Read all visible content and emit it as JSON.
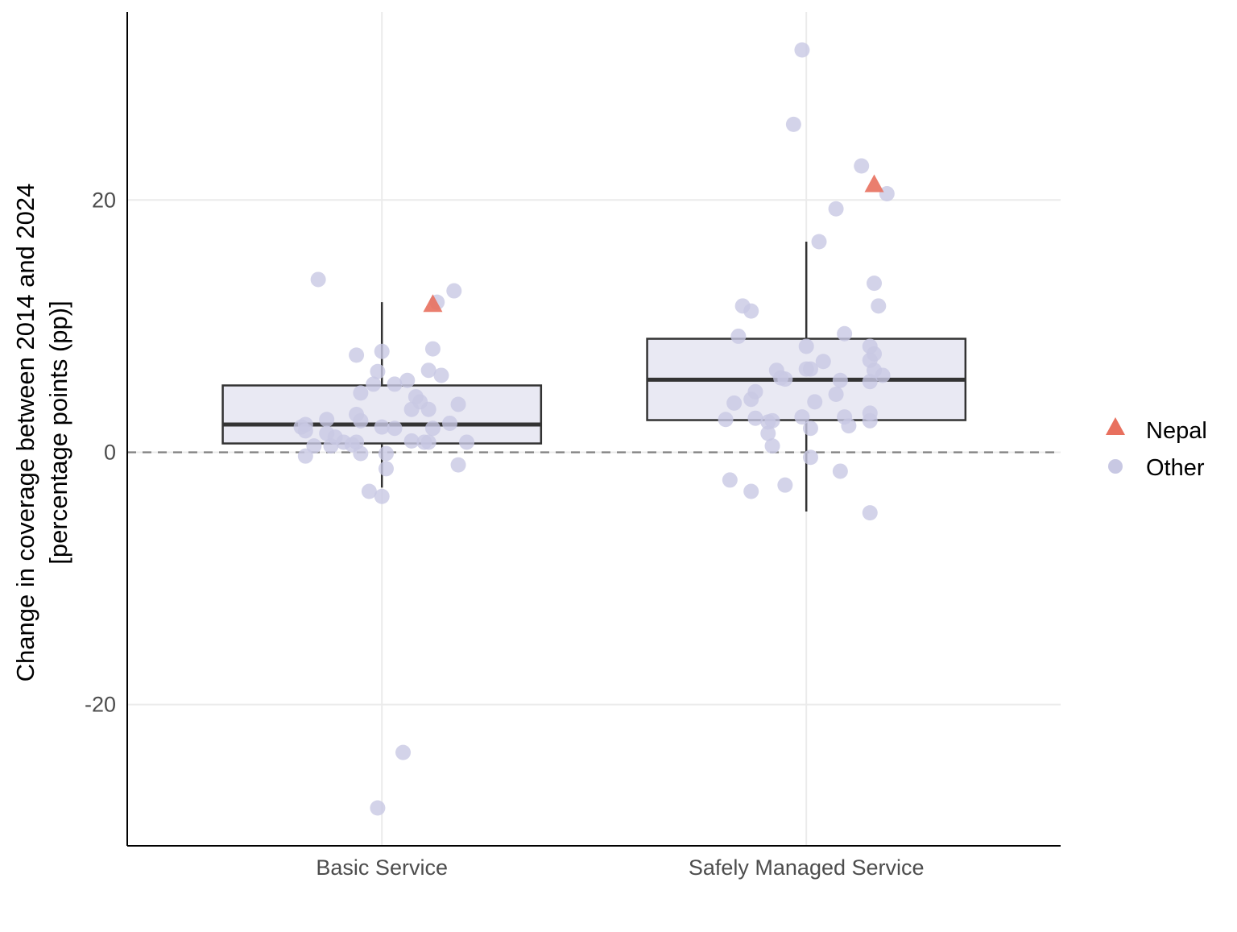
{
  "chart_data": {
    "type": "box+jitter",
    "title": "",
    "xlabel": "",
    "ylabel_lines": [
      "Change in coverage between 2014 and 2024",
      "[percentage points (pp)]"
    ],
    "categories": [
      "Basic Service",
      "Safely Managed Service"
    ],
    "ylim": [
      -31.2,
      34.9
    ],
    "yticks": [
      -20,
      0,
      20
    ],
    "ytick_labels": [
      "-20",
      "0",
      "20"
    ],
    "grid": true,
    "reference_line": {
      "y": 0,
      "style": "dashed",
      "color": "#808080"
    },
    "colors": {
      "box_fill": "#e9e9f3",
      "box_stroke": "#333333",
      "other": "#c8c8e3",
      "nepal": "#e8705e",
      "grid": "#ebebeb"
    },
    "boxes": [
      {
        "category": "Basic Service",
        "whisker_low": -2.8,
        "q1": 0.7,
        "median": 2.2,
        "q3": 5.3,
        "whisker_high": 11.9
      },
      {
        "category": "Safely Managed Service",
        "whisker_low": -4.7,
        "q1": 2.55,
        "median": 5.75,
        "q3": 9.0,
        "whisker_high": 16.7
      }
    ],
    "legend": {
      "position": "right",
      "entries": [
        {
          "label": "Nepal",
          "shape": "triangle"
        },
        {
          "label": "Other",
          "shape": "circle"
        }
      ]
    },
    "series": [
      {
        "name": "Other",
        "points": [
          {
            "cat": 0,
            "jitter": -0.15,
            "y": 13.7
          },
          {
            "cat": 0,
            "jitter": 0.17,
            "y": 12.8
          },
          {
            "cat": 0,
            "jitter": 0.13,
            "y": 11.9
          },
          {
            "cat": 0,
            "jitter": -0.06,
            "y": 7.7
          },
          {
            "cat": 0,
            "jitter": 0.0,
            "y": 8.0
          },
          {
            "cat": 0,
            "jitter": 0.12,
            "y": 8.2
          },
          {
            "cat": 0,
            "jitter": -0.01,
            "y": 6.4
          },
          {
            "cat": 0,
            "jitter": 0.11,
            "y": 6.5
          },
          {
            "cat": 0,
            "jitter": 0.14,
            "y": 6.1
          },
          {
            "cat": 0,
            "jitter": -0.02,
            "y": 5.4
          },
          {
            "cat": 0,
            "jitter": 0.03,
            "y": 5.4
          },
          {
            "cat": 0,
            "jitter": 0.06,
            "y": 5.7
          },
          {
            "cat": 0,
            "jitter": -0.05,
            "y": 4.7
          },
          {
            "cat": 0,
            "jitter": 0.08,
            "y": 4.4
          },
          {
            "cat": 0,
            "jitter": 0.09,
            "y": 4.0
          },
          {
            "cat": 0,
            "jitter": 0.07,
            "y": 3.4
          },
          {
            "cat": 0,
            "jitter": 0.11,
            "y": 3.4
          },
          {
            "cat": 0,
            "jitter": 0.18,
            "y": 3.8
          },
          {
            "cat": 0,
            "jitter": -0.06,
            "y": 3.0
          },
          {
            "cat": 0,
            "jitter": -0.05,
            "y": 2.5
          },
          {
            "cat": 0,
            "jitter": -0.13,
            "y": 2.6
          },
          {
            "cat": 0,
            "jitter": -0.18,
            "y": 2.2
          },
          {
            "cat": 0,
            "jitter": -0.19,
            "y": 2.0
          },
          {
            "cat": 0,
            "jitter": -0.18,
            "y": 1.7
          },
          {
            "cat": 0,
            "jitter": 0.0,
            "y": 2.0
          },
          {
            "cat": 0,
            "jitter": 0.03,
            "y": 1.9
          },
          {
            "cat": 0,
            "jitter": 0.16,
            "y": 2.3
          },
          {
            "cat": 0,
            "jitter": 0.12,
            "y": 1.9
          },
          {
            "cat": 0,
            "jitter": -0.13,
            "y": 1.5
          },
          {
            "cat": 0,
            "jitter": -0.11,
            "y": 1.2
          },
          {
            "cat": 0,
            "jitter": -0.09,
            "y": 0.8
          },
          {
            "cat": 0,
            "jitter": -0.06,
            "y": 0.8
          },
          {
            "cat": 0,
            "jitter": -0.07,
            "y": 0.6
          },
          {
            "cat": 0,
            "jitter": -0.16,
            "y": 0.5
          },
          {
            "cat": 0,
            "jitter": -0.12,
            "y": 0.5
          },
          {
            "cat": 0,
            "jitter": 0.07,
            "y": 0.9
          },
          {
            "cat": 0,
            "jitter": 0.1,
            "y": 0.8
          },
          {
            "cat": 0,
            "jitter": 0.11,
            "y": 0.8
          },
          {
            "cat": 0,
            "jitter": 0.2,
            "y": 0.8
          },
          {
            "cat": 0,
            "jitter": -0.18,
            "y": -0.3
          },
          {
            "cat": 0,
            "jitter": -0.05,
            "y": -0.1
          },
          {
            "cat": 0,
            "jitter": 0.01,
            "y": -0.1
          },
          {
            "cat": 0,
            "jitter": 0.01,
            "y": -1.3
          },
          {
            "cat": 0,
            "jitter": 0.18,
            "y": -1.0
          },
          {
            "cat": 0,
            "jitter": -0.03,
            "y": -3.1
          },
          {
            "cat": 0,
            "jitter": 0.0,
            "y": -3.5
          },
          {
            "cat": 0,
            "jitter": 0.05,
            "y": -23.8
          },
          {
            "cat": 0,
            "jitter": -0.01,
            "y": -28.2
          },
          {
            "cat": 1,
            "jitter": -0.01,
            "y": 31.9
          },
          {
            "cat": 1,
            "jitter": -0.03,
            "y": 26.0
          },
          {
            "cat": 1,
            "jitter": 0.13,
            "y": 22.7
          },
          {
            "cat": 1,
            "jitter": 0.19,
            "y": 20.5
          },
          {
            "cat": 1,
            "jitter": 0.07,
            "y": 19.3
          },
          {
            "cat": 1,
            "jitter": 0.03,
            "y": 16.7
          },
          {
            "cat": 1,
            "jitter": 0.16,
            "y": 13.4
          },
          {
            "cat": 1,
            "jitter": 0.17,
            "y": 11.6
          },
          {
            "cat": 1,
            "jitter": -0.15,
            "y": 11.6
          },
          {
            "cat": 1,
            "jitter": -0.13,
            "y": 11.2
          },
          {
            "cat": 1,
            "jitter": -0.16,
            "y": 9.2
          },
          {
            "cat": 1,
            "jitter": 0.09,
            "y": 9.4
          },
          {
            "cat": 1,
            "jitter": 0.0,
            "y": 8.4
          },
          {
            "cat": 1,
            "jitter": 0.15,
            "y": 8.4
          },
          {
            "cat": 1,
            "jitter": 0.16,
            "y": 7.8
          },
          {
            "cat": 1,
            "jitter": 0.15,
            "y": 7.3
          },
          {
            "cat": 1,
            "jitter": 0.04,
            "y": 7.2
          },
          {
            "cat": 1,
            "jitter": -0.07,
            "y": 6.5
          },
          {
            "cat": 1,
            "jitter": 0.0,
            "y": 6.6
          },
          {
            "cat": 1,
            "jitter": 0.01,
            "y": 6.6
          },
          {
            "cat": 1,
            "jitter": 0.16,
            "y": 6.5
          },
          {
            "cat": 1,
            "jitter": 0.18,
            "y": 6.1
          },
          {
            "cat": 1,
            "jitter": -0.06,
            "y": 5.9
          },
          {
            "cat": 1,
            "jitter": -0.05,
            "y": 5.8
          },
          {
            "cat": 1,
            "jitter": 0.08,
            "y": 5.7
          },
          {
            "cat": 1,
            "jitter": 0.15,
            "y": 5.6
          },
          {
            "cat": 1,
            "jitter": -0.12,
            "y": 4.8
          },
          {
            "cat": 1,
            "jitter": -0.13,
            "y": 4.2
          },
          {
            "cat": 1,
            "jitter": 0.07,
            "y": 4.6
          },
          {
            "cat": 1,
            "jitter": 0.02,
            "y": 4.0
          },
          {
            "cat": 1,
            "jitter": -0.17,
            "y": 3.9
          },
          {
            "cat": 1,
            "jitter": 0.15,
            "y": 3.1
          },
          {
            "cat": 1,
            "jitter": -0.19,
            "y": 2.6
          },
          {
            "cat": 1,
            "jitter": -0.12,
            "y": 2.7
          },
          {
            "cat": 1,
            "jitter": -0.09,
            "y": 2.4
          },
          {
            "cat": 1,
            "jitter": -0.08,
            "y": 2.5
          },
          {
            "cat": 1,
            "jitter": -0.01,
            "y": 2.8
          },
          {
            "cat": 1,
            "jitter": 0.09,
            "y": 2.8
          },
          {
            "cat": 1,
            "jitter": 0.15,
            "y": 2.5
          },
          {
            "cat": 1,
            "jitter": 0.1,
            "y": 2.1
          },
          {
            "cat": 1,
            "jitter": 0.01,
            "y": 1.9
          },
          {
            "cat": 1,
            "jitter": -0.09,
            "y": 1.5
          },
          {
            "cat": 1,
            "jitter": -0.08,
            "y": 0.5
          },
          {
            "cat": 1,
            "jitter": 0.01,
            "y": -0.4
          },
          {
            "cat": 1,
            "jitter": 0.08,
            "y": -1.5
          },
          {
            "cat": 1,
            "jitter": -0.18,
            "y": -2.2
          },
          {
            "cat": 1,
            "jitter": -0.13,
            "y": -3.1
          },
          {
            "cat": 1,
            "jitter": -0.05,
            "y": -2.6
          },
          {
            "cat": 1,
            "jitter": 0.15,
            "y": -4.8
          }
        ]
      },
      {
        "name": "Nepal",
        "points": [
          {
            "cat": 0,
            "jitter": 0.12,
            "y": 11.7
          },
          {
            "cat": 1,
            "jitter": 0.16,
            "y": 21.2
          }
        ]
      }
    ]
  }
}
